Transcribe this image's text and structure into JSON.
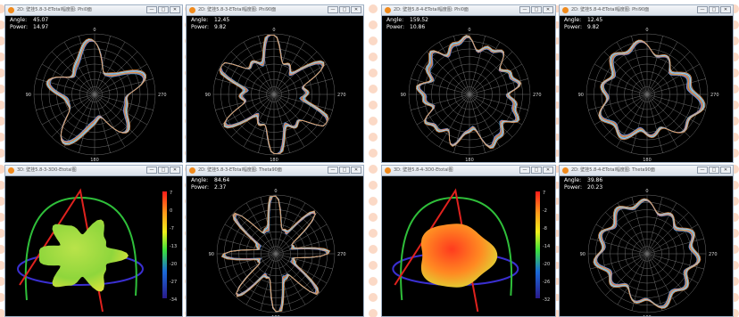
{
  "windows": [
    {
      "title": "2D: 壁挂5.8-3-ETotal幅度图: Phi0面",
      "angle_label": "Angle:",
      "angle": "45.07",
      "power_label": "Power:",
      "power": "14.97",
      "ticks": {
        "top": "0",
        "left": "90",
        "right": "270",
        "bottom": "180"
      },
      "icon": "antenna-icon"
    },
    {
      "title": "2D: 壁挂5.8-3-ETotal幅度图: Phi90面",
      "angle_label": "Angle:",
      "angle": "12.45",
      "power_label": "Power:",
      "power": "9.82",
      "ticks": {
        "top": "0",
        "left": "90",
        "right": "270",
        "bottom": "180"
      },
      "icon": "antenna-icon"
    },
    {
      "title": "2D: 壁挂5.8-4-ETotal幅度图: Phi0面",
      "angle_label": "Angle:",
      "angle": "159.52",
      "power_label": "Power:",
      "power": "10.86",
      "ticks": {
        "top": "0",
        "left": "90",
        "right": "270",
        "bottom": "180"
      },
      "icon": "antenna-icon"
    },
    {
      "title": "2D: 壁挂5.8-4-ETotal幅度图: Phi90面",
      "angle_label": "Angle:",
      "angle": "12.45",
      "power_label": "Power:",
      "power": "9.82",
      "ticks": {
        "top": "0",
        "left": "90",
        "right": "270",
        "bottom": "180"
      },
      "icon": "antenna-icon"
    },
    {
      "title": "3D: 壁挂5.8-3-3D0-Etotal图",
      "colorbar": [
        "7",
        "0",
        "-7",
        "-13",
        "-20",
        "-27",
        "-34"
      ],
      "icon": "antenna-icon"
    },
    {
      "title": "2D: 壁挂5.8-3-ETotal幅度图: Theta90面",
      "angle_label": "Angle:",
      "angle": "84.64",
      "power_label": "Power:",
      "power": "2.37",
      "ticks": {
        "top": "0",
        "left": "90",
        "right": "270",
        "bottom": "180"
      },
      "icon": "antenna-icon"
    },
    {
      "title": "3D: 壁挂5.8-4-3D0-Etotal图",
      "colorbar": [
        "7",
        "-2",
        "-8",
        "-14",
        "-20",
        "-26",
        "-32"
      ],
      "icon": "antenna-icon"
    },
    {
      "title": "2D: 壁挂5.8-4-ETotal幅度图: Theta90面",
      "angle_label": "Angle:",
      "angle": "39.86",
      "power_label": "Power:",
      "power": "20.23",
      "ticks": {
        "top": "0",
        "left": "90",
        "right": "270",
        "bottom": "180"
      },
      "icon": "antenna-icon"
    }
  ],
  "buttons": {
    "min": "—",
    "max": "□",
    "close": "✕"
  },
  "colors": {
    "background": "#000000",
    "grid": "#6f6f6f",
    "titlebar": "#dfe5ee",
    "accent": "#f08a1c"
  }
}
